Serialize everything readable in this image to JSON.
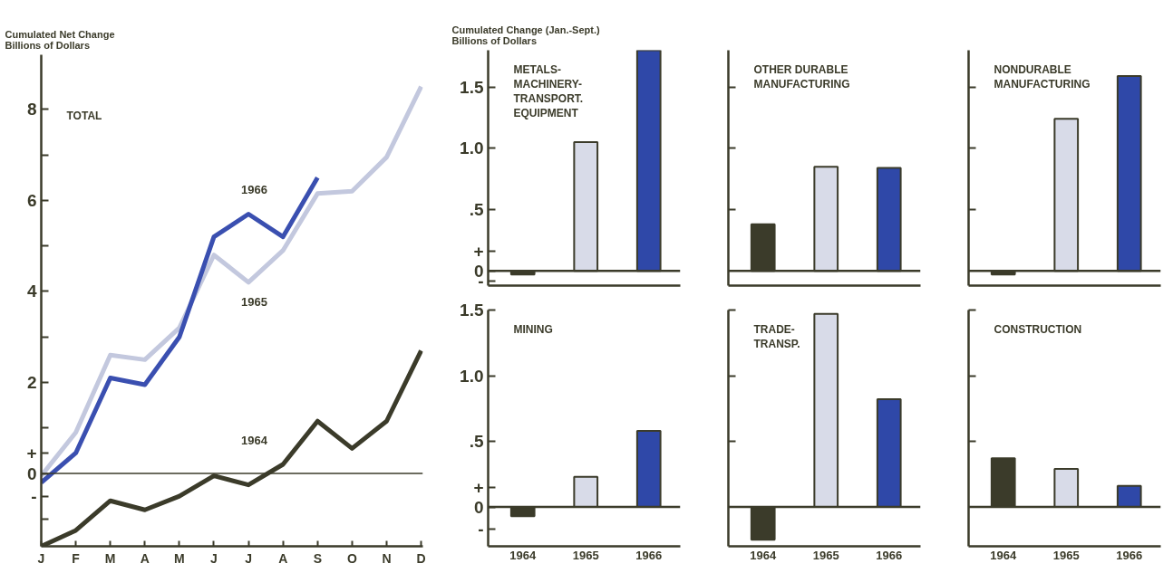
{
  "chart_data": [
    {
      "type": "line",
      "title": "TOTAL",
      "ylabel": "Cumulated Net Change\nBillions of Dollars",
      "categories": [
        "J",
        "F",
        "M",
        "A",
        "M",
        "J",
        "J",
        "A",
        "S",
        "O",
        "N",
        "D"
      ],
      "series": [
        {
          "name": "1964",
          "color": "#3b3b2a",
          "values": [
            -1.6,
            -1.25,
            -0.6,
            -0.8,
            -0.5,
            -0.05,
            -0.25,
            0.2,
            1.15,
            0.55,
            1.15,
            2.7
          ]
        },
        {
          "name": "1965",
          "color": "#c3c8de",
          "values": [
            -0.05,
            0.9,
            2.6,
            2.5,
            3.2,
            4.8,
            4.2,
            4.9,
            6.15,
            6.2,
            6.95,
            8.5
          ]
        },
        {
          "name": "1966",
          "color": "#3a4fb0",
          "values": [
            -0.2,
            0.45,
            2.1,
            1.95,
            3.0,
            5.2,
            5.7,
            5.2,
            6.5,
            null,
            null,
            null
          ]
        }
      ],
      "ylim": [
        -1.6,
        9.2
      ],
      "yticks": [
        {
          "value": -1,
          "label": null
        },
        {
          "value": -0.5,
          "label": "-"
        },
        0,
        {
          "value": 0.45,
          "label": "+"
        },
        {
          "value": 1,
          "label": null
        },
        2,
        {
          "value": 3,
          "label": null
        },
        4,
        {
          "value": 5,
          "label": null
        },
        6,
        {
          "value": 7,
          "label": null
        },
        8
      ],
      "ref_lines": [
        {
          "axis": "y",
          "value": 0,
          "label": null,
          "color": "#3b3b2a"
        }
      ],
      "grid": false,
      "legend": false
    },
    {
      "type": "bar",
      "title": "METALS-\nMACHINERY-\nTRANSPORT.\nEQUIPMENT",
      "ylabel": "Cumulated Change (Jan.-Sept.)\nBillions of Dollars",
      "categories": [
        "1964",
        "1965",
        "1966"
      ],
      "values": [
        -0.03,
        1.05,
        1.8
      ],
      "colors": [
        "#3b3b2a",
        "#d8dbe8",
        "#2f48a8"
      ],
      "ylim": [
        -0.12,
        1.8
      ],
      "yticks": [
        {
          "value": -0.08,
          "label": "-"
        },
        0,
        {
          "value": 0.16,
          "label": "+"
        },
        {
          "value": 0.5,
          "label": ".5"
        },
        {
          "value": 1,
          "label": "1.0"
        },
        1.5
      ],
      "ref_lines": [
        {
          "axis": "y",
          "value": 0,
          "label": null,
          "color": "#3b3b2a"
        }
      ],
      "tick_labels": "y",
      "grid": false
    },
    {
      "type": "bar",
      "title": "OTHER DURABLE\nMANUFACTURING",
      "categories": [
        "1964",
        "1965",
        "1966"
      ],
      "values": [
        0.38,
        0.85,
        0.84
      ],
      "colors": [
        "#3b3b2a",
        "#d8dbe8",
        "#2f48a8"
      ],
      "ylim": [
        -0.12,
        1.8
      ],
      "yticks": [
        {
          "value": 0.5,
          "label": null
        },
        {
          "value": 1,
          "label": null
        },
        {
          "value": 1.5,
          "label": null
        }
      ],
      "ref_lines": [
        {
          "axis": "y",
          "value": 0,
          "label": null,
          "color": "#3b3b2a"
        }
      ],
      "tick_labels": false,
      "grid": false
    },
    {
      "type": "bar",
      "title": "NONDURABLE\nMANUFACTURING",
      "categories": [
        "1964",
        "1965",
        "1966"
      ],
      "values": [
        -0.03,
        1.24,
        1.59
      ],
      "colors": [
        "#3b3b2a",
        "#d8dbe8",
        "#2f48a8"
      ],
      "ylim": [
        -0.12,
        1.8
      ],
      "yticks": [
        {
          "value": 0.5,
          "label": null
        },
        {
          "value": 1,
          "label": null
        },
        {
          "value": 1.5,
          "label": null
        }
      ],
      "ref_lines": [
        {
          "axis": "y",
          "value": 0,
          "label": null,
          "color": "#3b3b2a"
        }
      ],
      "tick_labels": false,
      "grid": false
    },
    {
      "type": "bar",
      "title": "MINING",
      "categories": [
        "1964",
        "1965",
        "1966"
      ],
      "values": [
        -0.07,
        0.23,
        0.58
      ],
      "colors": [
        "#3b3b2a",
        "#d8dbe8",
        "#2f48a8"
      ],
      "ylim": [
        -0.3,
        1.5
      ],
      "yticks": [
        {
          "value": -0.17,
          "label": "-"
        },
        0,
        {
          "value": 0.15,
          "label": "+"
        },
        {
          "value": 0.5,
          "label": ".5"
        },
        {
          "value": 1,
          "label": "1.0"
        },
        1.5
      ],
      "ref_lines": [
        {
          "axis": "y",
          "value": 0,
          "label": null,
          "color": "#3b3b2a"
        }
      ],
      "grid": false
    },
    {
      "type": "bar",
      "title": "TRADE-\nTRANSP.",
      "categories": [
        "1964",
        "1965",
        "1966"
      ],
      "values": [
        -0.25,
        1.47,
        0.82
      ],
      "colors": [
        "#3b3b2a",
        "#d8dbe8",
        "#2f48a8"
      ],
      "ylim": [
        -0.3,
        1.5
      ],
      "yticks": [
        {
          "value": 0.5,
          "label": null
        },
        {
          "value": 1,
          "label": null
        },
        {
          "value": 1.5,
          "label": null
        }
      ],
      "ref_lines": [
        {
          "axis": "y",
          "value": 0,
          "label": null,
          "color": "#3b3b2a"
        }
      ],
      "tick_labels": "x",
      "grid": false
    },
    {
      "type": "bar",
      "title": "CONSTRUCTION",
      "categories": [
        "1964",
        "1965",
        "1966"
      ],
      "values": [
        0.37,
        0.29,
        0.16
      ],
      "colors": [
        "#3b3b2a",
        "#d8dbe8",
        "#2f48a8"
      ],
      "ylim": [
        -0.3,
        1.5
      ],
      "yticks": [
        {
          "value": 0.5,
          "label": null
        },
        {
          "value": 1,
          "label": null
        },
        {
          "value": 1.5,
          "label": null
        }
      ],
      "ref_lines": [
        {
          "axis": "y",
          "value": 0,
          "label": null,
          "color": "#3b3b2a"
        }
      ],
      "tick_labels": "x",
      "grid": false
    }
  ]
}
